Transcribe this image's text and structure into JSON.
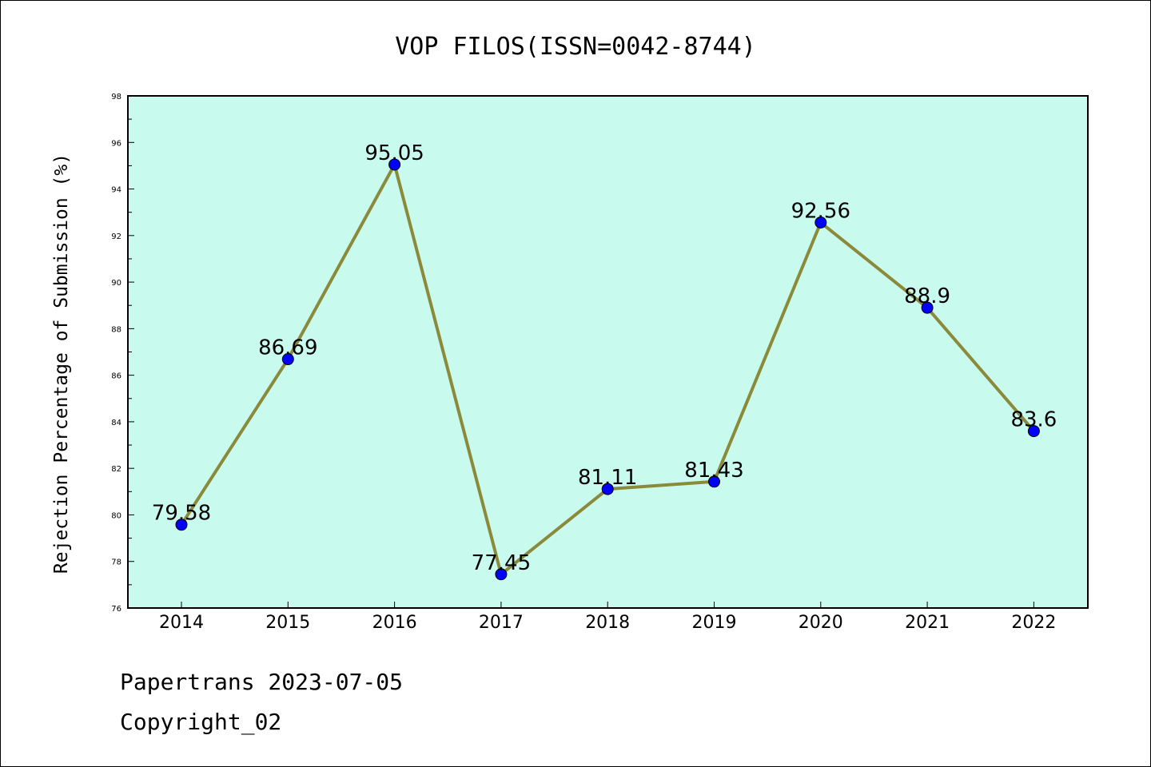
{
  "chart_data": {
    "type": "line",
    "title": "VOP FILOS(ISSN=0042-8744)",
    "xlabel": "",
    "ylabel": "Rejection Percentage of Submission (%)",
    "categories": [
      "2014",
      "2015",
      "2016",
      "2017",
      "2018",
      "2019",
      "2020",
      "2021",
      "2022"
    ],
    "series": [
      {
        "values": [
          79.58,
          86.69,
          95.05,
          77.45,
          81.11,
          81.43,
          92.56,
          88.9,
          83.6
        ],
        "data_labels": [
          "79.58",
          "86.69",
          "95.05",
          "77.45",
          "81.11",
          "81.43",
          "92.56",
          "88.9",
          "83.6"
        ]
      }
    ],
    "ylim": [
      76,
      98
    ],
    "yticks": [
      "76",
      "78",
      "80",
      "82",
      "84",
      "86",
      "88",
      "90",
      "92",
      "94",
      "96",
      "98"
    ],
    "grid": false,
    "colors": {
      "plot_background": "#c8fbee",
      "line": "#8b8a3a",
      "marker": "#0000ff"
    }
  },
  "footer": {
    "line1": "Papertrans 2023-07-05",
    "line2": "Copyright_02"
  }
}
